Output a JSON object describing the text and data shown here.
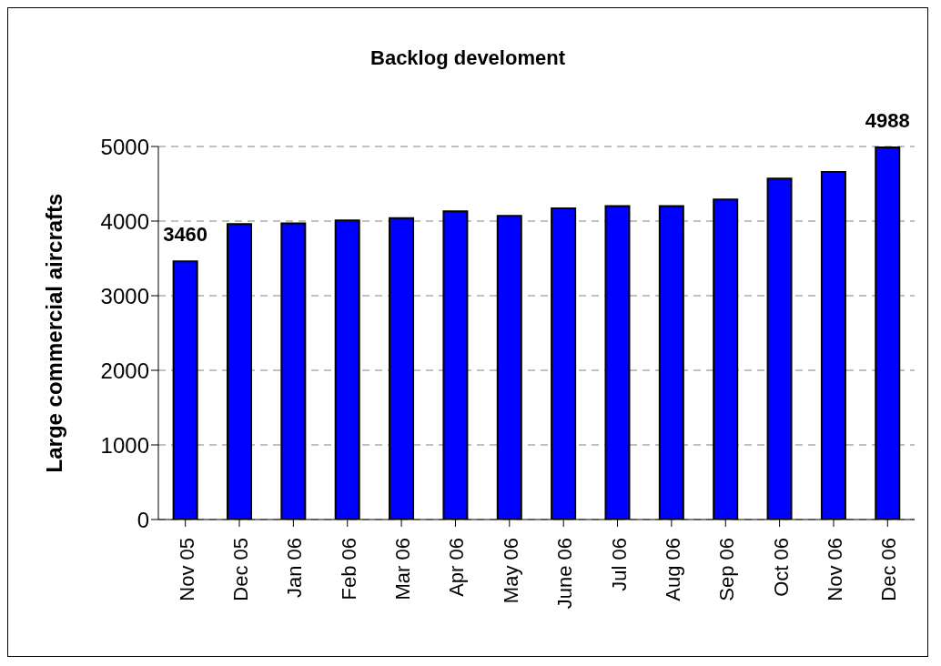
{
  "chart_data": {
    "type": "bar",
    "title": "Backlog develoment",
    "ylabel": "Large commercial aircrafts",
    "categories": [
      "Nov 05",
      "Dec 05",
      "Jan 06",
      "Feb 06",
      "Mar 06",
      "Apr 06",
      "May 06",
      "June 06",
      "Jul 06",
      "Aug 06",
      "Sep 06",
      "Oct 06",
      "Nov 06",
      "Dec 06"
    ],
    "values": [
      3460,
      3960,
      3970,
      4010,
      4040,
      4130,
      4070,
      4170,
      4200,
      4200,
      4290,
      4570,
      4660,
      4988
    ],
    "value_labels": [
      "3460",
      null,
      null,
      null,
      null,
      null,
      null,
      null,
      null,
      null,
      null,
      null,
      null,
      "4988"
    ],
    "color": "#0000ff",
    "ylim": [
      0,
      5000
    ],
    "yticks": [
      0,
      1000,
      2000,
      3000,
      4000,
      5000
    ],
    "grid": "y"
  }
}
